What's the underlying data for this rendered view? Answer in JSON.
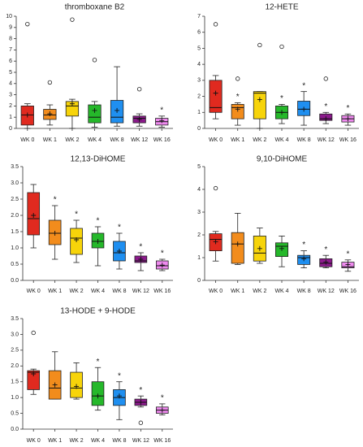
{
  "chart_data": [
    {
      "type": "box",
      "title": "thromboxane B2",
      "categories": [
        "WK 0",
        "WK 1",
        "WK 2",
        "WK 4",
        "WK 8",
        "WK 12",
        "WK 16"
      ],
      "colors": [
        "#e02a1f",
        "#f28c1c",
        "#f7d40a",
        "#25b82a",
        "#1f8ff0",
        "#8c1a8c",
        "#ee8aee"
      ],
      "whisker_low": [
        0,
        0.3,
        0,
        0.1,
        0.2,
        0.2,
        0.1
      ],
      "q1": [
        0.3,
        0.8,
        1.1,
        0.5,
        0.5,
        0.5,
        0.3
      ],
      "median": [
        1.2,
        1.2,
        2,
        1,
        1,
        0.9,
        0.6
      ],
      "q3": [
        2,
        1.7,
        2.4,
        2.1,
        2.5,
        1.1,
        0.9
      ],
      "whisker_high": [
        2.2,
        2.1,
        2.6,
        2.4,
        5.5,
        1.3,
        1.1
      ],
      "mean": [
        1.2,
        1.3,
        2.2,
        1.6,
        1.6,
        0.8,
        0.7
      ],
      "outliers": [
        [
          9.3
        ],
        [
          4.1
        ],
        [
          9.7
        ],
        [
          6.1
        ],
        [],
        [
          3.5
        ],
        []
      ],
      "annotations": [
        null,
        null,
        null,
        null,
        null,
        null,
        "*"
      ],
      "ylim": [
        0,
        10
      ],
      "yticks": [
        0,
        1,
        2,
        3,
        4,
        5,
        6,
        7,
        8,
        9,
        10
      ]
    },
    {
      "type": "box",
      "title": "12-HETE",
      "categories": [
        "WK 0",
        "WK 1",
        "WK 2",
        "WK 4",
        "WK 8",
        "WK 12",
        "WK 16"
      ],
      "colors": [
        "#e02a1f",
        "#f28c1c",
        "#f7d40a",
        "#25b82a",
        "#1f8ff0",
        "#8c1a8c",
        "#ee8aee"
      ],
      "whisker_low": [
        0.6,
        0.2,
        0,
        0.3,
        0.2,
        0.3,
        0.2
      ],
      "q1": [
        1,
        0.6,
        0.6,
        0.6,
        0.8,
        0.5,
        0.4
      ],
      "median": [
        1.3,
        1.3,
        2.2,
        1,
        1.2,
        0.6,
        0.6
      ],
      "q3": [
        3,
        1.5,
        2.3,
        1.4,
        1.7,
        0.9,
        0.8
      ],
      "whisker_high": [
        3.3,
        1.6,
        2.3,
        1.5,
        2.3,
        1,
        0.9
      ],
      "mean": [
        2.2,
        1.2,
        1.8,
        1,
        1.2,
        0.6,
        0.6
      ],
      "outliers": [
        [
          6.5
        ],
        [
          3.1
        ],
        [
          5.2
        ],
        [
          5.1
        ],
        [],
        [
          3.1
        ],
        []
      ],
      "annotations": [
        null,
        "*",
        null,
        "*",
        "*",
        "*",
        "*"
      ],
      "ylim": [
        0,
        7
      ],
      "yticks": [
        0,
        1,
        2,
        3,
        4,
        5,
        6,
        7
      ]
    },
    {
      "type": "box",
      "title": "12,13-DiHOME",
      "categories": [
        "WK 0",
        "WK 1",
        "WK 2",
        "WK 4",
        "WK 8",
        "WK 12",
        "WK 16"
      ],
      "colors": [
        "#e02a1f",
        "#f28c1c",
        "#f7d40a",
        "#25b82a",
        "#1f8ff0",
        "#8c1a8c",
        "#ee8aee"
      ],
      "whisker_low": [
        1,
        0.65,
        0.55,
        0.45,
        0.35,
        0.3,
        0.3
      ],
      "q1": [
        1.4,
        1.1,
        0.8,
        1,
        0.6,
        0.55,
        0.35
      ],
      "median": [
        1.9,
        1.45,
        1.3,
        1.2,
        0.85,
        0.6,
        0.45
      ],
      "q3": [
        2.7,
        1.85,
        1.6,
        1.45,
        1.2,
        0.75,
        0.6
      ],
      "whisker_high": [
        2.95,
        2.3,
        1.85,
        1.65,
        1.45,
        0.85,
        0.65
      ],
      "mean": [
        2,
        1.45,
        1.25,
        1.2,
        0.9,
        0.65,
        0.47
      ],
      "outliers": [
        [],
        [],
        [],
        [],
        [],
        [],
        []
      ],
      "annotations": [
        null,
        "*",
        "*",
        "*",
        "*",
        "*",
        "*"
      ],
      "ylim": [
        0,
        3.5
      ],
      "yticks": [
        {
          "value": 0,
          "label": "0.0"
        },
        {
          "value": 0.5,
          "label": "0.5"
        },
        {
          "value": 1,
          "label": "1.0"
        },
        {
          "value": 1.5,
          "label": "1.5"
        },
        {
          "value": 2,
          "label": "2.0"
        },
        {
          "value": 2.5,
          "label": "2.5"
        },
        {
          "value": 3,
          "label": "3.0"
        },
        {
          "value": 3.5,
          "label": "3.5"
        }
      ]
    },
    {
      "type": "box",
      "title": "9,10-DiHOME",
      "categories": [
        "WK 0",
        "WK 1",
        "WK 2",
        "WK 4",
        "WK 8",
        "WK 12",
        "WK 16"
      ],
      "colors": [
        "#e02a1f",
        "#f28c1c",
        "#f7d40a",
        "#25b82a",
        "#1f8ff0",
        "#8c1a8c",
        "#ee8aee"
      ],
      "whisker_low": [
        0.85,
        0.7,
        0.75,
        0.6,
        0.55,
        0.55,
        0.4
      ],
      "q1": [
        1.3,
        0.75,
        0.85,
        1.05,
        0.7,
        0.6,
        0.55
      ],
      "median": [
        1.8,
        1.6,
        1.2,
        1.5,
        1,
        0.75,
        0.6
      ],
      "q3": [
        2.05,
        2.1,
        1.95,
        1.65,
        1.1,
        0.95,
        0.8
      ],
      "whisker_high": [
        2.15,
        2.95,
        2.3,
        1.95,
        1.3,
        1.1,
        0.9
      ],
      "mean": [
        1.7,
        1.6,
        1.4,
        1.4,
        0.95,
        0.8,
        0.7
      ],
      "outliers": [
        [
          4.05
        ],
        [],
        [],
        [],
        [],
        [],
        []
      ],
      "annotations": [
        null,
        null,
        null,
        null,
        "*",
        "*",
        "*"
      ],
      "ylim": [
        0,
        5
      ],
      "yticks": [
        0,
        1,
        2,
        3,
        4,
        5
      ]
    },
    {
      "type": "box",
      "title": "13-HODE + 9-HODE",
      "categories": [
        "WK 0",
        "WK 1",
        "WK 2",
        "WK 4",
        "WK 8",
        "WK 12",
        "WK 16"
      ],
      "colors": [
        "#e02a1f",
        "#f28c1c",
        "#f7d40a",
        "#25b82a",
        "#1f8ff0",
        "#8c1a8c",
        "#ee8aee"
      ],
      "whisker_low": [
        1.1,
        0.95,
        0.95,
        0.6,
        0.3,
        0.7,
        0.45
      ],
      "q1": [
        1.25,
        0.95,
        1,
        0.75,
        0.75,
        0.75,
        0.5
      ],
      "median": [
        1.8,
        1.3,
        1.3,
        1.05,
        1,
        0.85,
        0.6
      ],
      "q3": [
        1.85,
        1.85,
        1.8,
        1.5,
        1.25,
        0.95,
        0.7
      ],
      "whisker_high": [
        1.9,
        2.45,
        2.1,
        1.95,
        1.5,
        1.05,
        0.8
      ],
      "mean": [
        1.75,
        1.4,
        1.35,
        1.05,
        1.05,
        0.85,
        0.6
      ],
      "outliers": [
        [
          3.05
        ],
        [],
        [],
        [],
        [],
        [
          0.2
        ],
        []
      ],
      "annotations": [
        null,
        null,
        null,
        "*",
        "*",
        "*",
        "*"
      ],
      "ylim": [
        0,
        3.5
      ],
      "yticks": [
        {
          "value": 0,
          "label": "0.0"
        },
        {
          "value": 0.5,
          "label": "0.5"
        },
        {
          "value": 1,
          "label": "1.0"
        },
        {
          "value": 1.5,
          "label": "1.5"
        },
        {
          "value": 2,
          "label": "2.0"
        },
        {
          "value": 2.5,
          "label": "2.5"
        },
        {
          "value": 3,
          "label": "3.0"
        },
        {
          "value": 3.5,
          "label": "3.5"
        }
      ]
    }
  ]
}
